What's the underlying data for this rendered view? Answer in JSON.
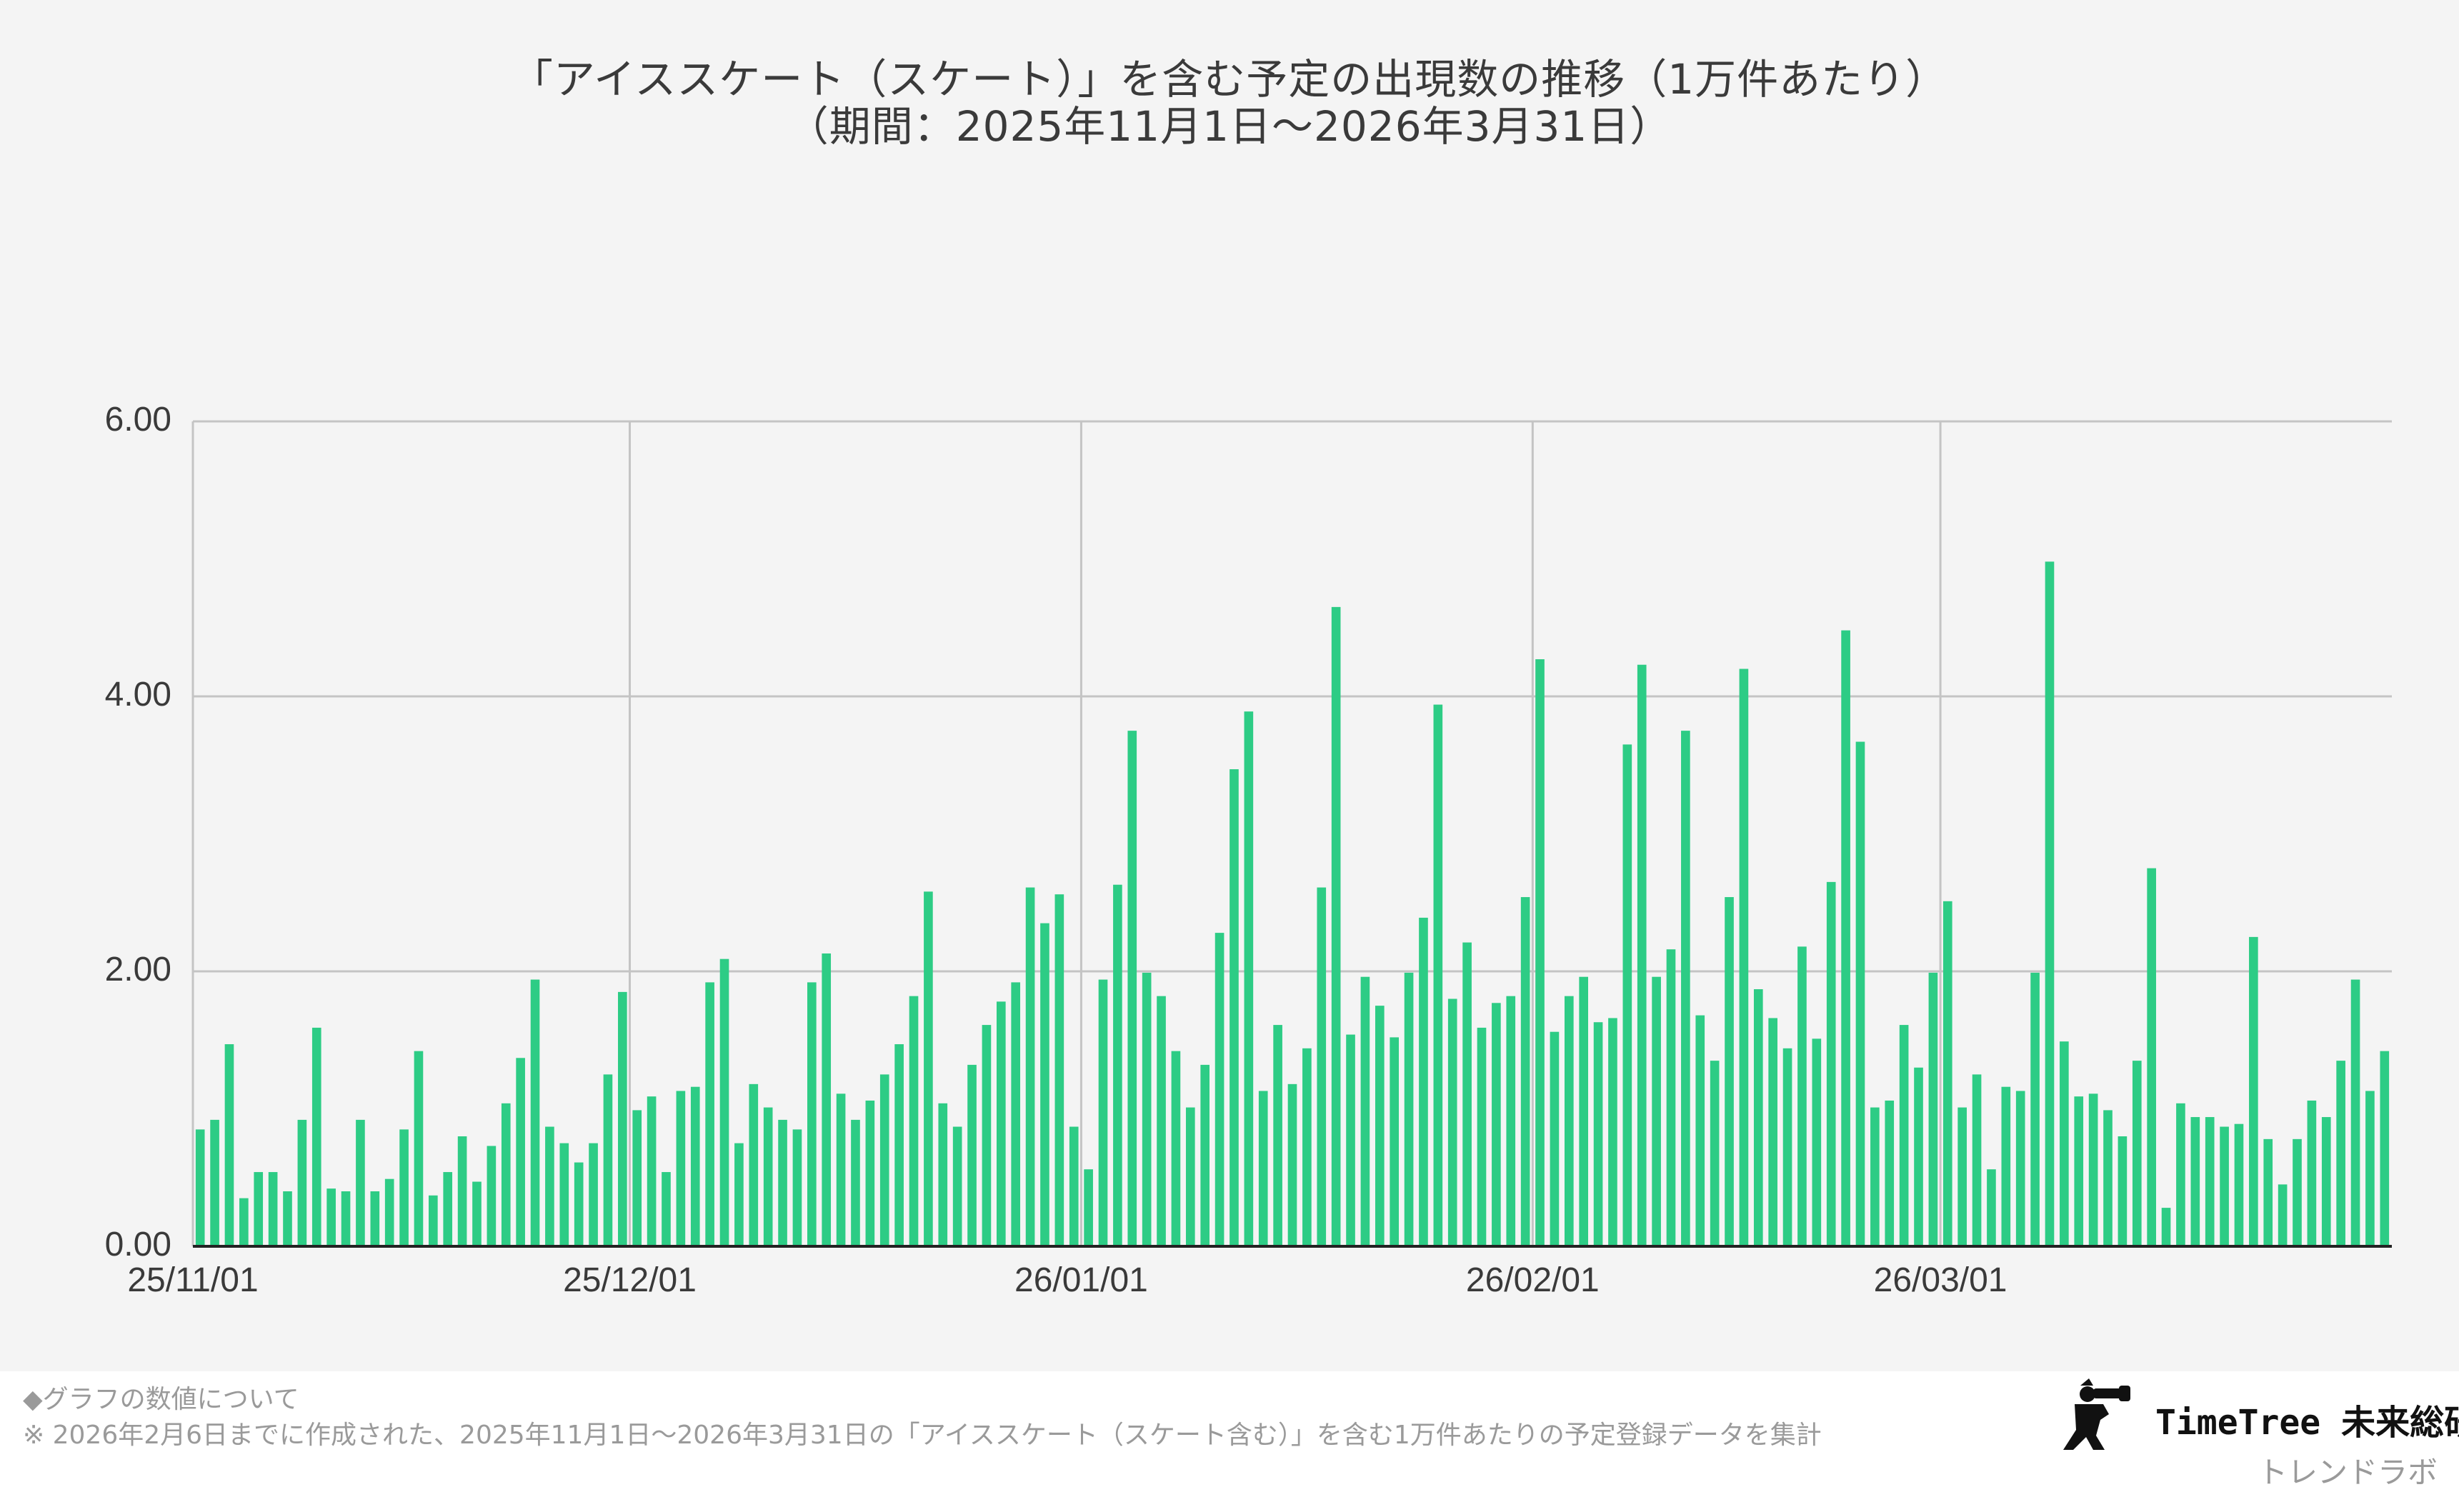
{
  "chart_data": {
    "type": "bar",
    "title": "「アイススケート（スケート）」を含む予定の出現数の推移（1万件あたり）",
    "subtitle": "（期間：2025年11月1日〜2026年3月31日）",
    "xlabel": "",
    "ylabel": "",
    "ylim": [
      0,
      6
    ],
    "y_ticks": [
      "0.00",
      "2.00",
      "4.00",
      "6.00"
    ],
    "x_ticks": [
      {
        "label": "25/11/01",
        "index": 0
      },
      {
        "label": "25/12/01",
        "index": 30
      },
      {
        "label": "26/01/01",
        "index": 61
      },
      {
        "label": "26/02/01",
        "index": 92
      },
      {
        "label": "26/03/01",
        "index": 120
      }
    ],
    "grid": true,
    "legend": "none",
    "bar_color": "#2dcc85",
    "categories_start": "2025-11-01",
    "values": [
      0.85,
      0.92,
      1.47,
      0.35,
      0.54,
      0.54,
      0.4,
      0.92,
      1.59,
      0.42,
      0.4,
      0.92,
      0.4,
      0.49,
      0.85,
      1.42,
      0.37,
      0.54,
      0.8,
      0.47,
      0.73,
      1.04,
      1.37,
      1.94,
      0.87,
      0.75,
      0.61,
      0.75,
      1.25,
      1.85,
      0.99,
      1.09,
      0.54,
      1.13,
      1.16,
      1.92,
      2.09,
      0.75,
      1.18,
      1.01,
      0.92,
      0.85,
      1.92,
      2.13,
      1.11,
      0.92,
      1.06,
      1.25,
      1.47,
      1.82,
      2.58,
      1.04,
      0.87,
      1.32,
      1.61,
      1.78,
      1.92,
      2.61,
      2.35,
      2.56,
      0.87,
      0.56,
      1.94,
      2.63,
      3.75,
      1.99,
      1.82,
      1.42,
      1.01,
      1.32,
      2.28,
      3.47,
      3.89,
      1.13,
      1.61,
      1.18,
      1.44,
      2.61,
      4.65,
      1.54,
      1.96,
      1.75,
      1.52,
      1.99,
      2.39,
      3.94,
      1.8,
      2.21,
      1.59,
      1.77,
      1.82,
      2.54,
      4.27,
      1.56,
      1.82,
      1.96,
      1.63,
      1.66,
      3.65,
      4.23,
      1.96,
      2.16,
      3.75,
      1.68,
      1.35,
      2.54,
      4.2,
      1.87,
      1.66,
      1.44,
      2.18,
      1.51,
      2.65,
      4.48,
      3.67,
      1.01,
      1.06,
      1.61,
      1.3,
      1.99,
      2.51,
      1.01,
      1.25,
      0.56,
      1.16,
      1.13,
      1.99,
      4.98,
      1.49,
      1.09,
      1.11,
      0.99,
      0.8,
      1.35,
      2.75,
      0.28,
      1.04,
      0.94,
      0.94,
      0.87,
      0.89,
      2.25,
      0.78,
      0.45,
      0.78,
      1.06,
      0.94,
      1.35,
      1.94,
      1.13,
      1.42
    ]
  },
  "footer": {
    "note_heading": "◆グラフの数値について",
    "note_body": "※ 2026年2月6日までに作成された、2025年11月1日〜2026年3月31日の「アイススケート（スケート含む）」を含む1万件あたりの予定登録データを集計"
  },
  "brand": {
    "name": "TimeTree 未来総研",
    "sub": "トレンドラボ"
  }
}
